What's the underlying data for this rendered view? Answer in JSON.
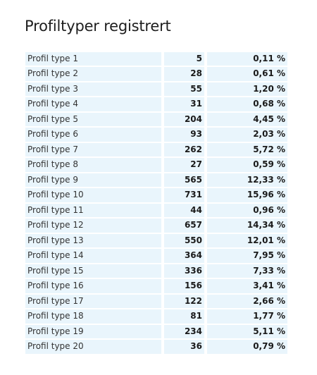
{
  "title": "Profiltyper registrert",
  "rows": [
    {
      "name": "Profil type 1",
      "count": "5",
      "percent": "0,11 %"
    },
    {
      "name": "Profil type 2",
      "count": "28",
      "percent": "0,61 %"
    },
    {
      "name": "Profil type 3",
      "count": "55",
      "percent": "1,20 %"
    },
    {
      "name": "Profil type 4",
      "count": "31",
      "percent": "0,68 %"
    },
    {
      "name": "Profil type 5",
      "count": "204",
      "percent": "4,45 %"
    },
    {
      "name": "Profil type 6",
      "count": "93",
      "percent": "2,03 %"
    },
    {
      "name": "Profil type 7",
      "count": "262",
      "percent": "5,72 %"
    },
    {
      "name": "Profil type 8",
      "count": "27",
      "percent": "0,59 %"
    },
    {
      "name": "Profil type 9",
      "count": "565",
      "percent": "12,33 %"
    },
    {
      "name": "Profil type 10",
      "count": "731",
      "percent": "15,96 %"
    },
    {
      "name": "Profil type 11",
      "count": "44",
      "percent": "0,96 %"
    },
    {
      "name": "Profil type 12",
      "count": "657",
      "percent": "14,34 %"
    },
    {
      "name": "Profil type 13",
      "count": "550",
      "percent": "12,01 %"
    },
    {
      "name": "Profil type 14",
      "count": "364",
      "percent": "7,95 %"
    },
    {
      "name": "Profil type 15",
      "count": "336",
      "percent": "7,33 %"
    },
    {
      "name": "Profil type 16",
      "count": "156",
      "percent": "3,41 %"
    },
    {
      "name": "Profil type 17",
      "count": "122",
      "percent": "2,66 %"
    },
    {
      "name": "Profil type 18",
      "count": "81",
      "percent": "1,77 %"
    },
    {
      "name": "Profil type 19",
      "count": "234",
      "percent": "5,11 %"
    },
    {
      "name": "Profil type 20",
      "count": "36",
      "percent": "0,79 %"
    }
  ],
  "colors": {
    "row_background": "#e9f5fc",
    "text": "#222222"
  }
}
